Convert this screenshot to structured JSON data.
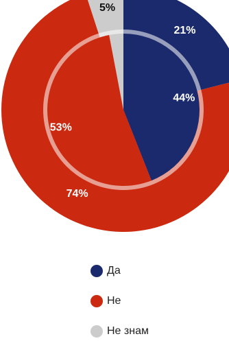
{
  "chart_data": {
    "type": "pie",
    "outer": {
      "values": [
        21,
        74,
        5
      ],
      "labels": [
        "21%",
        "74%",
        "5%"
      ]
    },
    "inner": {
      "values": [
        44,
        53,
        3
      ],
      "labels": [
        "44%",
        "53%",
        ""
      ]
    },
    "legend": [
      {
        "name": "Да",
        "color": "#1a2a6c"
      },
      {
        "name": "Не",
        "color": "#cc2a10"
      },
      {
        "name": "Не знам",
        "color": "#cccccc"
      }
    ],
    "legend_position": "bottom"
  }
}
